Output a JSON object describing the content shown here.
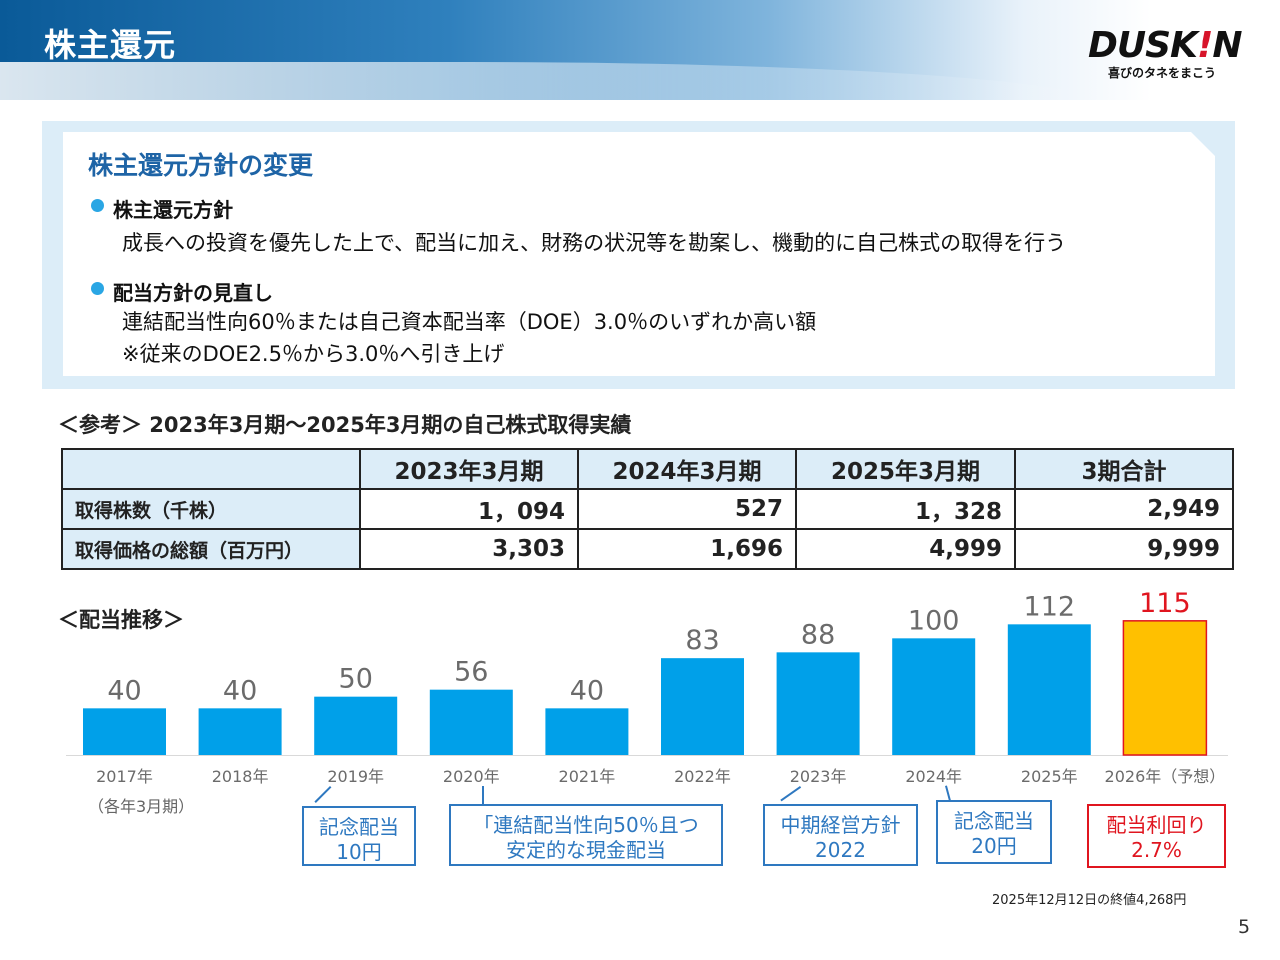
{
  "header": {
    "title": "株主還元"
  },
  "logo": {
    "word_left": "DUSK",
    "word_bang": "!",
    "word_right": "N",
    "tagline": "喜びのタネをまこう"
  },
  "policy": {
    "heading": "株主還元方針の変更",
    "items": [
      {
        "title": "株主還元方針",
        "lines": [
          "成長への投資を優先した上で、配当に加え、財務の状況等を勘案し、機動的に自己株式の取得を行う"
        ]
      },
      {
        "title": "配当方針の見直し",
        "lines": [
          "連結配当性向60％または自己資本配当率（DOE）3.0％のいずれか高い額",
          "※従来のDOE2.5％から3.0％へ引き上げ"
        ]
      }
    ]
  },
  "reference": {
    "title": "＜参考＞ 2023年3月期～2025年3月期の自己株式取得実績",
    "columns": [
      "",
      "2023年3月期",
      "2024年3月期",
      "2025年3月期",
      "3期合計"
    ],
    "rows": [
      {
        "label": "取得株数（千株）",
        "values": [
          "1，094",
          "527",
          "1，328",
          "2,949"
        ]
      },
      {
        "label": "取得価格の総額（百万円）",
        "values": [
          "3,303",
          "1,696",
          "4,999",
          "9,999"
        ]
      }
    ]
  },
  "dividend": {
    "title": "＜配当推移＞",
    "period_note": "（各年3月期）",
    "colors": {
      "bar": "#00a0e9",
      "forecast_bar": "#ffc000",
      "forecast_border": "#e0151f",
      "forecast_label": "#e0151f"
    },
    "callouts": [
      {
        "lines": [
          "記念配当",
          "10円"
        ],
        "style": "blue"
      },
      {
        "lines": [
          "「連結配当性向50％且つ",
          "安定的な現金配当"
        ],
        "style": "blue"
      },
      {
        "lines": [
          "中期経営方針",
          "2022"
        ],
        "style": "blue"
      },
      {
        "lines": [
          "記念配当",
          "20円"
        ],
        "style": "blue"
      },
      {
        "lines": [
          "配当利回り",
          "2.7%"
        ],
        "style": "red"
      }
    ],
    "price_note": "2025年12月12日の終値4,268円"
  },
  "chart_data": {
    "type": "bar",
    "title": "＜配当推移＞",
    "categories": [
      "2017年",
      "2018年",
      "2019年",
      "2020年",
      "2021年",
      "2022年",
      "2023年",
      "2024年",
      "2025年",
      "2026年（予想）"
    ],
    "values": [
      40,
      40,
      50,
      56,
      40,
      83,
      88,
      100,
      112,
      115
    ],
    "forecast_index": 9,
    "xlabel": "",
    "ylabel": "",
    "ylim": [
      0,
      120
    ],
    "grid": false
  },
  "page_number": "5"
}
